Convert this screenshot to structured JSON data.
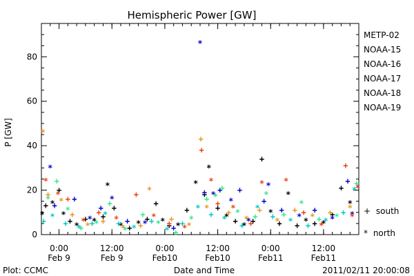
{
  "chart_data": {
    "type": "scatter",
    "title": "Hemispheric Power [GW]",
    "ylabel": "P [GW]",
    "xlabel": "Date and Time",
    "ylim": [
      0,
      95
    ],
    "xlim": [
      "2011-02-08T20:00",
      "2011-02-11T20:00"
    ],
    "yticks": [
      0,
      20,
      40,
      60,
      80
    ],
    "xticks": [
      {
        "x": "2011-02-09T00:00",
        "time": "0:00",
        "date": "Feb 9"
      },
      {
        "x": "2011-02-09T12:00",
        "time": "12:00",
        "date": "Feb 9"
      },
      {
        "x": "2011-02-10T00:00",
        "time": "0:00",
        "date": "Feb10"
      },
      {
        "x": "2011-02-10T12:00",
        "time": "12:00",
        "date": "Feb10"
      },
      {
        "x": "2011-02-11T00:00",
        "time": "0:00",
        "date": "Feb11"
      },
      {
        "x": "2011-02-11T12:00",
        "time": "12:00",
        "date": "Feb11"
      }
    ],
    "grid": false,
    "legend_position": "right",
    "markers": {
      "south": "+",
      "north": "*"
    },
    "series": [
      {
        "name": "METP-02",
        "color": "#000000",
        "points": [
          {
            "x": "2011-02-08T20:10",
            "y": 9,
            "m": "n"
          },
          {
            "x": "2011-02-08T21:00",
            "y": 13,
            "m": "s"
          },
          {
            "x": "2011-02-08T22:30",
            "y": 14,
            "m": "n"
          },
          {
            "x": "2011-02-09T00:00",
            "y": 20,
            "m": "s"
          },
          {
            "x": "2011-02-09T01:00",
            "y": 9,
            "m": "n"
          },
          {
            "x": "2011-02-09T02:30",
            "y": 6,
            "m": "s"
          },
          {
            "x": "2011-02-09T04:00",
            "y": 4,
            "m": "n"
          },
          {
            "x": "2011-02-09T06:00",
            "y": 7,
            "m": "s"
          },
          {
            "x": "2011-02-09T08:00",
            "y": 6,
            "m": "n"
          },
          {
            "x": "2011-02-09T10:00",
            "y": 8,
            "m": "s"
          },
          {
            "x": "2011-02-09T11:00",
            "y": 22,
            "m": "n"
          },
          {
            "x": "2011-02-09T12:30",
            "y": 12,
            "m": "s"
          },
          {
            "x": "2011-02-09T14:00",
            "y": 4,
            "m": "n"
          },
          {
            "x": "2011-02-09T16:00",
            "y": 3,
            "m": "s"
          },
          {
            "x": "2011-02-09T18:00",
            "y": 5,
            "m": "n"
          },
          {
            "x": "2011-02-09T20:00",
            "y": 7,
            "m": "s"
          },
          {
            "x": "2011-02-09T22:00",
            "y": 14,
            "m": "s"
          },
          {
            "x": "2011-02-09T23:30",
            "y": 6,
            "m": "n"
          },
          {
            "x": "2011-02-10T01:00",
            "y": 4,
            "m": "s"
          },
          {
            "x": "2011-02-10T03:00",
            "y": 4,
            "m": "n"
          },
          {
            "x": "2011-02-10T05:00",
            "y": 11,
            "m": "s"
          },
          {
            "x": "2011-02-10T07:00",
            "y": 23,
            "m": "n"
          },
          {
            "x": "2011-02-10T09:00",
            "y": 18,
            "m": "s"
          },
          {
            "x": "2011-02-10T10:00",
            "y": 30,
            "m": "n"
          },
          {
            "x": "2011-02-10T12:00",
            "y": 12,
            "m": "s"
          },
          {
            "x": "2011-02-10T14:00",
            "y": 8,
            "m": "n"
          },
          {
            "x": "2011-02-10T16:00",
            "y": 6,
            "m": "s"
          },
          {
            "x": "2011-02-10T18:00",
            "y": 4,
            "m": "n"
          },
          {
            "x": "2011-02-10T20:00",
            "y": 6,
            "m": "s"
          },
          {
            "x": "2011-02-10T22:00",
            "y": 34,
            "m": "s"
          },
          {
            "x": "2011-02-11T00:00",
            "y": 10,
            "m": "n"
          },
          {
            "x": "2011-02-11T02:00",
            "y": 5,
            "m": "s"
          },
          {
            "x": "2011-02-11T04:00",
            "y": 18,
            "m": "n"
          },
          {
            "x": "2011-02-11T06:00",
            "y": 4,
            "m": "s"
          },
          {
            "x": "2011-02-11T08:00",
            "y": 6,
            "m": "n"
          },
          {
            "x": "2011-02-11T10:00",
            "y": 5,
            "m": "s"
          },
          {
            "x": "2011-02-11T12:00",
            "y": 5,
            "m": "n"
          },
          {
            "x": "2011-02-11T14:00",
            "y": 9,
            "m": "s"
          },
          {
            "x": "2011-02-11T16:00",
            "y": 21,
            "m": "s"
          },
          {
            "x": "2011-02-11T18:00",
            "y": 14,
            "m": "n"
          }
        ]
      },
      {
        "name": "NOAA-15",
        "color": "#0000c8",
        "points": [
          {
            "x": "2011-02-08T22:00",
            "y": 30,
            "m": "n"
          },
          {
            "x": "2011-02-08T23:00",
            "y": 13,
            "m": "s"
          },
          {
            "x": "2011-02-09T03:30",
            "y": 16,
            "m": "s"
          },
          {
            "x": "2011-02-09T07:00",
            "y": 7,
            "m": "n"
          },
          {
            "x": "2011-02-09T09:30",
            "y": 12,
            "m": "s"
          },
          {
            "x": "2011-02-09T12:00",
            "y": 16,
            "m": "n"
          },
          {
            "x": "2011-02-09T15:30",
            "y": 6,
            "m": "s"
          },
          {
            "x": "2011-02-09T19:30",
            "y": 5,
            "m": "n"
          },
          {
            "x": "2011-02-10T02:00",
            "y": 3,
            "m": "s"
          },
          {
            "x": "2011-02-10T08:00",
            "y": 86,
            "m": "n"
          },
          {
            "x": "2011-02-10T09:00",
            "y": 19,
            "m": "s"
          },
          {
            "x": "2011-02-10T11:00",
            "y": 18,
            "m": "n"
          },
          {
            "x": "2011-02-10T12:30",
            "y": 20,
            "m": "s"
          },
          {
            "x": "2011-02-10T15:00",
            "y": 15,
            "m": "n"
          },
          {
            "x": "2011-02-10T17:00",
            "y": 20,
            "m": "s"
          },
          {
            "x": "2011-02-10T19:00",
            "y": 6,
            "m": "n"
          },
          {
            "x": "2011-02-10T22:30",
            "y": 15,
            "m": "s"
          },
          {
            "x": "2011-02-10T23:30",
            "y": 22,
            "m": "n"
          },
          {
            "x": "2011-02-11T02:30",
            "y": 11,
            "m": "s"
          },
          {
            "x": "2011-02-11T06:30",
            "y": 8,
            "m": "n"
          },
          {
            "x": "2011-02-11T10:00",
            "y": 11,
            "m": "s"
          },
          {
            "x": "2011-02-11T14:00",
            "y": 7,
            "m": "n"
          },
          {
            "x": "2011-02-11T17:30",
            "y": 24,
            "m": "s"
          },
          {
            "x": "2011-02-11T18:30",
            "y": 9,
            "m": "n"
          }
        ]
      },
      {
        "name": "NOAA-16",
        "color": "#00c8c8",
        "points": [
          {
            "x": "2011-02-08T20:30",
            "y": 6,
            "m": "s"
          },
          {
            "x": "2011-02-08T22:30",
            "y": 8,
            "m": "n"
          },
          {
            "x": "2011-02-09T01:30",
            "y": 5,
            "m": "s"
          },
          {
            "x": "2011-02-09T04:30",
            "y": 3,
            "m": "n"
          },
          {
            "x": "2011-02-09T07:30",
            "y": 5,
            "m": "s"
          },
          {
            "x": "2011-02-09T10:30",
            "y": 9,
            "m": "n"
          },
          {
            "x": "2011-02-09T13:30",
            "y": 5,
            "m": "s"
          },
          {
            "x": "2011-02-09T17:00",
            "y": 3,
            "m": "n"
          },
          {
            "x": "2011-02-09T21:00",
            "y": 6,
            "m": "s"
          },
          {
            "x": "2011-02-10T00:30",
            "y": 2,
            "m": "n"
          },
          {
            "x": "2011-02-10T04:00",
            "y": 5,
            "m": "s"
          },
          {
            "x": "2011-02-10T07:30",
            "y": 12,
            "m": "n"
          },
          {
            "x": "2011-02-10T10:30",
            "y": 9,
            "m": "s"
          },
          {
            "x": "2011-02-10T13:30",
            "y": 7,
            "m": "n"
          },
          {
            "x": "2011-02-10T17:30",
            "y": 4,
            "m": "s"
          },
          {
            "x": "2011-02-10T21:00",
            "y": 12,
            "m": "n"
          },
          {
            "x": "2011-02-11T00:30",
            "y": 8,
            "m": "s"
          },
          {
            "x": "2011-02-11T04:30",
            "y": 6,
            "m": "n"
          },
          {
            "x": "2011-02-11T08:30",
            "y": 4,
            "m": "s"
          },
          {
            "x": "2011-02-11T12:30",
            "y": 6,
            "m": "n"
          },
          {
            "x": "2011-02-11T16:30",
            "y": 10,
            "m": "s"
          },
          {
            "x": "2011-02-11T19:00",
            "y": 20,
            "m": "n"
          }
        ]
      },
      {
        "name": "NOAA-17",
        "color": "#32e68c",
        "points": [
          {
            "x": "2011-02-08T21:30",
            "y": 16,
            "m": "n"
          },
          {
            "x": "2011-02-08T23:30",
            "y": 24,
            "m": "s"
          },
          {
            "x": "2011-02-09T02:00",
            "y": 11,
            "m": "n"
          },
          {
            "x": "2011-02-09T05:00",
            "y": 3,
            "m": "s"
          },
          {
            "x": "2011-02-09T08:30",
            "y": 5,
            "m": "n"
          },
          {
            "x": "2011-02-09T11:30",
            "y": 14,
            "m": "s"
          },
          {
            "x": "2011-02-09T15:00",
            "y": 2,
            "m": "n"
          },
          {
            "x": "2011-02-09T19:00",
            "y": 9,
            "m": "s"
          },
          {
            "x": "2011-02-09T22:30",
            "y": 5,
            "m": "n"
          },
          {
            "x": "2011-02-10T02:30",
            "y": 1,
            "m": "s"
          },
          {
            "x": "2011-02-10T06:00",
            "y": 7,
            "m": "n"
          },
          {
            "x": "2011-02-10T09:30",
            "y": 16,
            "m": "s"
          },
          {
            "x": "2011-02-10T11:30",
            "y": 17,
            "m": "n"
          },
          {
            "x": "2011-02-10T13:00",
            "y": 21,
            "m": "s"
          },
          {
            "x": "2011-02-10T16:30",
            "y": 10,
            "m": "n"
          },
          {
            "x": "2011-02-10T20:30",
            "y": 8,
            "m": "s"
          },
          {
            "x": "2011-02-10T23:00",
            "y": 18,
            "m": "n"
          },
          {
            "x": "2011-02-11T03:00",
            "y": 9,
            "m": "s"
          },
          {
            "x": "2011-02-11T07:00",
            "y": 14,
            "m": "n"
          },
          {
            "x": "2011-02-11T11:00",
            "y": 7,
            "m": "s"
          },
          {
            "x": "2011-02-11T15:00",
            "y": 8,
            "m": "n"
          },
          {
            "x": "2011-02-11T19:30",
            "y": 23,
            "m": "s"
          }
        ]
      },
      {
        "name": "NOAA-18",
        "color": "#e6961e",
        "points": [
          {
            "x": "2011-02-08T20:20",
            "y": 46,
            "m": "n"
          },
          {
            "x": "2011-02-08T21:30",
            "y": 18,
            "m": "s"
          },
          {
            "x": "2011-02-09T00:30",
            "y": 15,
            "m": "n"
          },
          {
            "x": "2011-02-09T03:00",
            "y": 9,
            "m": "s"
          },
          {
            "x": "2011-02-09T06:30",
            "y": 4,
            "m": "n"
          },
          {
            "x": "2011-02-09T10:00",
            "y": 6,
            "m": "s"
          },
          {
            "x": "2011-02-09T14:30",
            "y": 3,
            "m": "n"
          },
          {
            "x": "2011-02-09T18:30",
            "y": 4,
            "m": "s"
          },
          {
            "x": "2011-02-09T20:30",
            "y": 20,
            "m": "n"
          },
          {
            "x": "2011-02-10T01:30",
            "y": 7,
            "m": "s"
          },
          {
            "x": "2011-02-10T05:30",
            "y": 4,
            "m": "n"
          },
          {
            "x": "2011-02-10T08:10",
            "y": 43,
            "m": "s"
          },
          {
            "x": "2011-02-10T09:30",
            "y": 12,
            "m": "n"
          },
          {
            "x": "2011-02-10T14:30",
            "y": 10,
            "m": "s"
          },
          {
            "x": "2011-02-10T18:30",
            "y": 7,
            "m": "n"
          },
          {
            "x": "2011-02-10T21:30",
            "y": 11,
            "m": "s"
          },
          {
            "x": "2011-02-11T01:30",
            "y": 6,
            "m": "n"
          },
          {
            "x": "2011-02-11T05:30",
            "y": 11,
            "m": "s"
          },
          {
            "x": "2011-02-11T09:30",
            "y": 8,
            "m": "n"
          },
          {
            "x": "2011-02-11T13:30",
            "y": 10,
            "m": "s"
          },
          {
            "x": "2011-02-11T18:00",
            "y": 12,
            "m": "n"
          }
        ]
      },
      {
        "name": "NOAA-19",
        "color": "#f03c14",
        "points": [
          {
            "x": "2011-02-08T21:00",
            "y": 24,
            "m": "n"
          },
          {
            "x": "2011-02-08T23:45",
            "y": 18,
            "m": "n"
          },
          {
            "x": "2011-02-09T02:00",
            "y": 16,
            "m": "s"
          },
          {
            "x": "2011-02-09T05:30",
            "y": 6,
            "m": "n"
          },
          {
            "x": "2011-02-09T09:00",
            "y": 10,
            "m": "s"
          },
          {
            "x": "2011-02-09T13:00",
            "y": 7,
            "m": "n"
          },
          {
            "x": "2011-02-09T17:30",
            "y": 18,
            "m": "s"
          },
          {
            "x": "2011-02-09T21:30",
            "y": 8,
            "m": "n"
          },
          {
            "x": "2011-02-10T01:00",
            "y": 5,
            "m": "s"
          },
          {
            "x": "2011-02-10T04:30",
            "y": 3,
            "m": "n"
          },
          {
            "x": "2011-02-10T08:20",
            "y": 38,
            "m": "s"
          },
          {
            "x": "2011-02-10T10:30",
            "y": 24,
            "m": "n"
          },
          {
            "x": "2011-02-10T12:00",
            "y": 14,
            "m": "s"
          },
          {
            "x": "2011-02-10T15:30",
            "y": 12,
            "m": "n"
          },
          {
            "x": "2011-02-10T19:30",
            "y": 5,
            "m": "s"
          },
          {
            "x": "2011-02-10T22:00",
            "y": 23,
            "m": "n"
          },
          {
            "x": "2011-02-11T03:30",
            "y": 24,
            "m": "n"
          },
          {
            "x": "2011-02-11T07:30",
            "y": 10,
            "m": "s"
          },
          {
            "x": "2011-02-11T11:30",
            "y": 4,
            "m": "n"
          },
          {
            "x": "2011-02-11T17:00",
            "y": 31,
            "m": "s"
          },
          {
            "x": "2011-02-11T18:30",
            "y": 8,
            "m": "n"
          },
          {
            "x": "2011-02-11T19:45",
            "y": 21,
            "m": "n"
          }
        ]
      }
    ]
  },
  "footer": {
    "left": "Plot: CCMC",
    "right": "2011/02/11 20:00:08"
  }
}
